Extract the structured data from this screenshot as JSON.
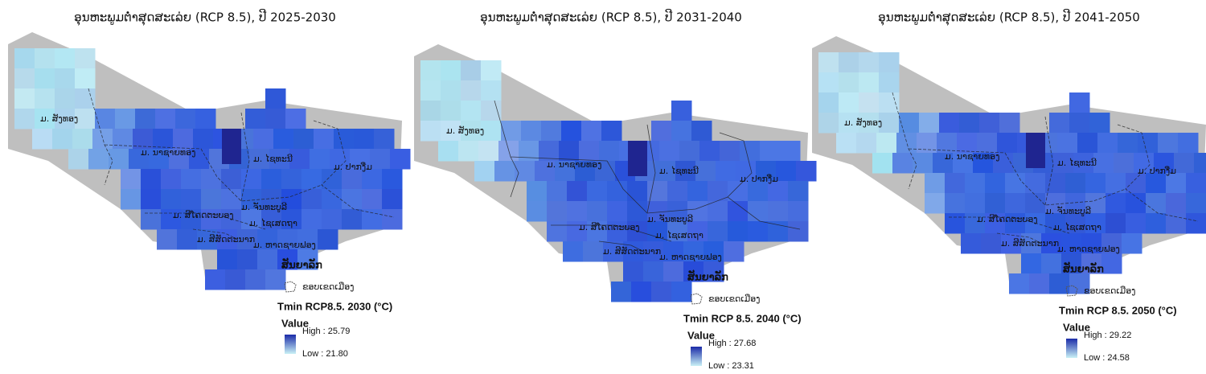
{
  "panels": [
    {
      "title": "ອຸນຫະພູມຕໍ່າສຸດສະເລ່ຍ (RCP 8.5), ປີ 2025-2030",
      "districts": [
        "ມ. ສັງທອງ",
        "ມ. ນາຊາຍທອງ",
        "ມ. ໄຊທະນີ",
        "ມ. ປາກງື່ມ",
        "ມ. ຈັນທະບູລີ",
        "ມ. ສີໂຄດຕະບອງ",
        "ມ. ໄຊເສດຖາ",
        "ມ. ສີສັດຕະນາກ",
        "ມ. ຫາດຊາຍຟອງ"
      ],
      "legend": {
        "heading": "ສັນຍາລັກ",
        "boundary": "ຂອບເຂດເມືອງ",
        "title": "Tmin RCP8.5. 2030 (°C)",
        "value": "Value",
        "high": "High : 25.79",
        "low": "Low : 21.80"
      }
    },
    {
      "title": "ອຸນຫະພູມຕໍ່າສຸດສະເລ່ຍ (RCP 8.5), ປີ 2031-2040",
      "districts": [
        "ມ. ສັງທອງ",
        "ມ. ນາຊາຍທອງ",
        "ມ. ໄຊທະນີ",
        "ມ. ປາກງື່ມ",
        "ມ. ຈັນທະບູລີ",
        "ມ. ສີໂຄດຕະບອງ",
        "ມ. ໄຊເສດຖາ",
        "ມ. ສີສັດຕະນາກ",
        "ມ. ຫາດຊາຍຟອງ"
      ],
      "legend": {
        "heading": "ສັນຍາລັກ",
        "boundary": "ຂອບເຂດເມືອງ",
        "title": "Tmin RCP 8.5. 2040 (°C)",
        "value": "Value",
        "high": "High : 27.68",
        "low": "Low : 23.31"
      }
    },
    {
      "title": "ອຸນຫະພູມຕໍ່າສຸດສະເລ່ຍ (RCP 8.5), ປີ 2041-2050",
      "districts": [
        "ມ. ສັງທອງ",
        "ມ. ນາຊາຍທອງ",
        "ມ. ໄຊທະນີ",
        "ມ. ປາກງື່ມ",
        "ມ. ຈັນທະບູລີ",
        "ມ. ສີໂຄດຕະບອງ",
        "ມ. ໄຊເສດຖາ",
        "ມ. ສີສັດຕະນາກ",
        "ມ. ຫາດຊາຍຟອງ"
      ],
      "legend": {
        "heading": "ສັນຍາລັກ",
        "boundary": "ຂອບເຂດເມືອງ",
        "title": "Tmin RCP 8.5. 2050 (°C)",
        "value": "Value",
        "high": "High : 29.22",
        "low": "Low : 24.58"
      }
    }
  ]
}
